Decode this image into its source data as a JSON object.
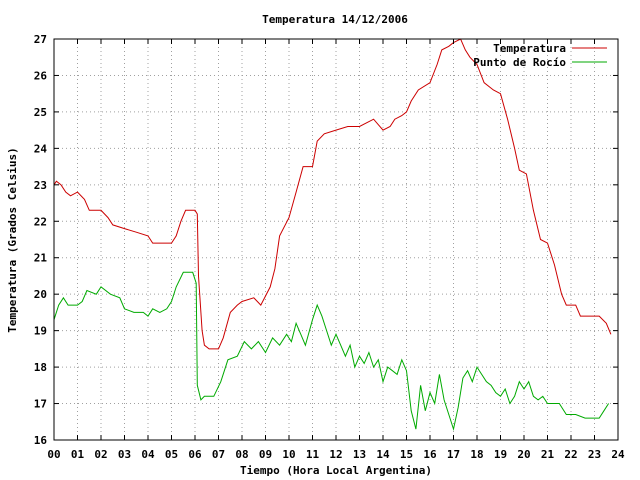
{
  "chart_data": {
    "type": "line",
    "title": "Temperatura 14/12/2006",
    "xlabel": "Tiempo (Hora Local Argentina)",
    "ylabel": "Temperatura (Grados Celsius)",
    "xlim": [
      0,
      24
    ],
    "ylim": [
      16,
      27
    ],
    "grid": true,
    "legend_position": "top-right",
    "x_ticks": [
      {
        "value": 0,
        "label": "00"
      },
      {
        "value": 1,
        "label": "01"
      },
      {
        "value": 2,
        "label": "02"
      },
      {
        "value": 3,
        "label": "03"
      },
      {
        "value": 4,
        "label": "04"
      },
      {
        "value": 5,
        "label": "05"
      },
      {
        "value": 6,
        "label": "06"
      },
      {
        "value": 7,
        "label": "07"
      },
      {
        "value": 8,
        "label": "08"
      },
      {
        "value": 9,
        "label": "09"
      },
      {
        "value": 10,
        "label": "10"
      },
      {
        "value": 11,
        "label": "11"
      },
      {
        "value": 12,
        "label": "12"
      },
      {
        "value": 13,
        "label": "13"
      },
      {
        "value": 14,
        "label": "14"
      },
      {
        "value": 15,
        "label": "15"
      },
      {
        "value": 16,
        "label": "16"
      },
      {
        "value": 17,
        "label": "17"
      },
      {
        "value": 18,
        "label": "18"
      },
      {
        "value": 19,
        "label": "19"
      },
      {
        "value": 20,
        "label": "20"
      },
      {
        "value": 21,
        "label": "21"
      },
      {
        "value": 22,
        "label": "22"
      },
      {
        "value": 23,
        "label": "23"
      },
      {
        "value": 24,
        "label": "24"
      }
    ],
    "y_ticks": [
      {
        "value": 16,
        "label": "16"
      },
      {
        "value": 17,
        "label": "17"
      },
      {
        "value": 18,
        "label": "18"
      },
      {
        "value": 19,
        "label": "19"
      },
      {
        "value": 20,
        "label": "20"
      },
      {
        "value": 21,
        "label": "21"
      },
      {
        "value": 22,
        "label": "22"
      },
      {
        "value": 23,
        "label": "23"
      },
      {
        "value": 24,
        "label": "24"
      },
      {
        "value": 25,
        "label": "25"
      },
      {
        "value": 26,
        "label": "26"
      },
      {
        "value": 27,
        "label": "27"
      }
    ],
    "series": [
      {
        "name": "Temperatura",
        "color": "#cc0000",
        "points": [
          [
            0.0,
            23.0
          ],
          [
            0.1,
            23.1
          ],
          [
            0.3,
            23.0
          ],
          [
            0.5,
            22.8
          ],
          [
            0.7,
            22.7
          ],
          [
            1.0,
            22.8
          ],
          [
            1.3,
            22.6
          ],
          [
            1.5,
            22.3
          ],
          [
            2.0,
            22.3
          ],
          [
            2.3,
            22.1
          ],
          [
            2.5,
            21.9
          ],
          [
            3.0,
            21.8
          ],
          [
            3.5,
            21.7
          ],
          [
            4.0,
            21.6
          ],
          [
            4.2,
            21.4
          ],
          [
            4.5,
            21.4
          ],
          [
            5.0,
            21.4
          ],
          [
            5.2,
            21.6
          ],
          [
            5.4,
            22.0
          ],
          [
            5.6,
            22.3
          ],
          [
            6.0,
            22.3
          ],
          [
            6.1,
            22.2
          ],
          [
            6.15,
            20.5
          ],
          [
            6.3,
            19.0
          ],
          [
            6.4,
            18.6
          ],
          [
            6.6,
            18.5
          ],
          [
            7.0,
            18.5
          ],
          [
            7.2,
            18.8
          ],
          [
            7.5,
            19.5
          ],
          [
            7.8,
            19.7
          ],
          [
            8.0,
            19.8
          ],
          [
            8.5,
            19.9
          ],
          [
            8.8,
            19.7
          ],
          [
            9.2,
            20.2
          ],
          [
            9.4,
            20.7
          ],
          [
            9.6,
            21.6
          ],
          [
            10.0,
            22.1
          ],
          [
            10.3,
            22.8
          ],
          [
            10.6,
            23.5
          ],
          [
            11.0,
            23.5
          ],
          [
            11.2,
            24.2
          ],
          [
            11.5,
            24.4
          ],
          [
            12.0,
            24.5
          ],
          [
            12.5,
            24.6
          ],
          [
            13.0,
            24.6
          ],
          [
            13.3,
            24.7
          ],
          [
            13.6,
            24.8
          ],
          [
            14.0,
            24.5
          ],
          [
            14.3,
            24.6
          ],
          [
            14.5,
            24.8
          ],
          [
            14.8,
            24.9
          ],
          [
            15.0,
            25.0
          ],
          [
            15.2,
            25.3
          ],
          [
            15.5,
            25.6
          ],
          [
            16.0,
            25.8
          ],
          [
            16.3,
            26.3
          ],
          [
            16.5,
            26.7
          ],
          [
            16.8,
            26.8
          ],
          [
            17.0,
            26.9
          ],
          [
            17.3,
            27.0
          ],
          [
            17.5,
            26.7
          ],
          [
            17.7,
            26.5
          ],
          [
            18.0,
            26.3
          ],
          [
            18.3,
            25.8
          ],
          [
            18.7,
            25.6
          ],
          [
            19.0,
            25.5
          ],
          [
            19.3,
            24.8
          ],
          [
            19.6,
            24.0
          ],
          [
            19.8,
            23.4
          ],
          [
            20.1,
            23.3
          ],
          [
            20.4,
            22.3
          ],
          [
            20.7,
            21.5
          ],
          [
            21.0,
            21.4
          ],
          [
            21.3,
            20.8
          ],
          [
            21.6,
            20.0
          ],
          [
            21.8,
            19.7
          ],
          [
            22.2,
            19.7
          ],
          [
            22.4,
            19.4
          ],
          [
            22.8,
            19.4
          ],
          [
            23.2,
            19.4
          ],
          [
            23.5,
            19.2
          ],
          [
            23.7,
            18.9
          ]
        ]
      },
      {
        "name": "Punto de Rocío",
        "color": "#00aa00",
        "points": [
          [
            0.0,
            19.3
          ],
          [
            0.2,
            19.7
          ],
          [
            0.4,
            19.9
          ],
          [
            0.6,
            19.7
          ],
          [
            1.0,
            19.7
          ],
          [
            1.2,
            19.8
          ],
          [
            1.4,
            20.1
          ],
          [
            1.8,
            20.0
          ],
          [
            2.0,
            20.2
          ],
          [
            2.4,
            20.0
          ],
          [
            2.8,
            19.9
          ],
          [
            3.0,
            19.6
          ],
          [
            3.4,
            19.5
          ],
          [
            3.8,
            19.5
          ],
          [
            4.0,
            19.4
          ],
          [
            4.2,
            19.6
          ],
          [
            4.5,
            19.5
          ],
          [
            4.8,
            19.6
          ],
          [
            5.0,
            19.8
          ],
          [
            5.2,
            20.2
          ],
          [
            5.5,
            20.6
          ],
          [
            5.9,
            20.6
          ],
          [
            6.05,
            20.3
          ],
          [
            6.1,
            17.5
          ],
          [
            6.25,
            17.1
          ],
          [
            6.4,
            17.2
          ],
          [
            6.8,
            17.2
          ],
          [
            7.1,
            17.6
          ],
          [
            7.4,
            18.2
          ],
          [
            7.8,
            18.3
          ],
          [
            8.1,
            18.7
          ],
          [
            8.4,
            18.5
          ],
          [
            8.7,
            18.7
          ],
          [
            9.0,
            18.4
          ],
          [
            9.3,
            18.8
          ],
          [
            9.6,
            18.6
          ],
          [
            9.9,
            18.9
          ],
          [
            10.1,
            18.7
          ],
          [
            10.3,
            19.2
          ],
          [
            10.5,
            18.9
          ],
          [
            10.7,
            18.6
          ],
          [
            11.0,
            19.3
          ],
          [
            11.2,
            19.7
          ],
          [
            11.4,
            19.4
          ],
          [
            11.6,
            19.0
          ],
          [
            11.8,
            18.6
          ],
          [
            12.0,
            18.9
          ],
          [
            12.2,
            18.6
          ],
          [
            12.4,
            18.3
          ],
          [
            12.6,
            18.6
          ],
          [
            12.8,
            18.0
          ],
          [
            13.0,
            18.3
          ],
          [
            13.2,
            18.1
          ],
          [
            13.4,
            18.4
          ],
          [
            13.6,
            18.0
          ],
          [
            13.8,
            18.2
          ],
          [
            14.0,
            17.6
          ],
          [
            14.2,
            18.0
          ],
          [
            14.4,
            17.9
          ],
          [
            14.6,
            17.8
          ],
          [
            14.8,
            18.2
          ],
          [
            15.0,
            17.9
          ],
          [
            15.2,
            16.8
          ],
          [
            15.4,
            16.3
          ],
          [
            15.6,
            17.5
          ],
          [
            15.8,
            16.8
          ],
          [
            16.0,
            17.3
          ],
          [
            16.2,
            17.0
          ],
          [
            16.4,
            17.8
          ],
          [
            16.6,
            17.1
          ],
          [
            16.8,
            16.7
          ],
          [
            17.0,
            16.3
          ],
          [
            17.2,
            16.9
          ],
          [
            17.4,
            17.7
          ],
          [
            17.6,
            17.9
          ],
          [
            17.8,
            17.6
          ],
          [
            18.0,
            18.0
          ],
          [
            18.2,
            17.8
          ],
          [
            18.4,
            17.6
          ],
          [
            18.6,
            17.5
          ],
          [
            18.8,
            17.3
          ],
          [
            19.0,
            17.2
          ],
          [
            19.2,
            17.4
          ],
          [
            19.4,
            17.0
          ],
          [
            19.6,
            17.2
          ],
          [
            19.8,
            17.6
          ],
          [
            20.0,
            17.4
          ],
          [
            20.2,
            17.6
          ],
          [
            20.4,
            17.2
          ],
          [
            20.6,
            17.1
          ],
          [
            20.8,
            17.2
          ],
          [
            21.0,
            17.0
          ],
          [
            21.2,
            17.0
          ],
          [
            21.5,
            17.0
          ],
          [
            21.8,
            16.7
          ],
          [
            22.2,
            16.7
          ],
          [
            22.6,
            16.6
          ],
          [
            23.0,
            16.6
          ],
          [
            23.2,
            16.6
          ],
          [
            23.4,
            16.8
          ],
          [
            23.6,
            17.0
          ]
        ]
      }
    ]
  }
}
